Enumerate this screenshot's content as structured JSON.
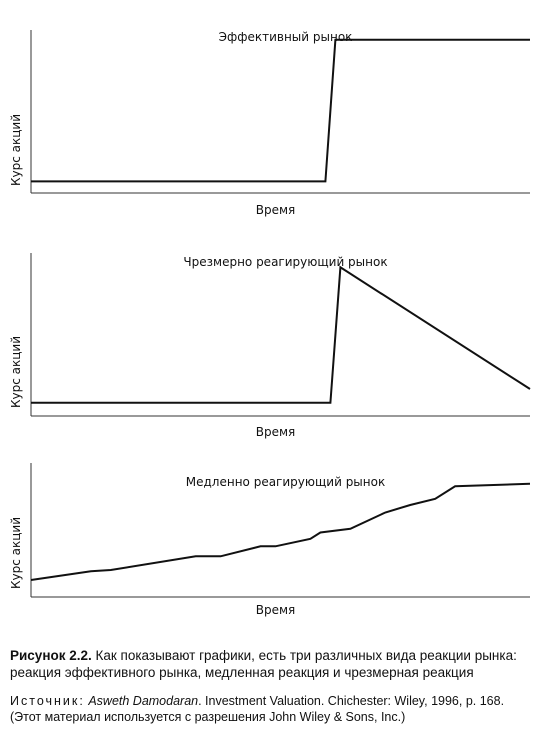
{
  "chart_data": [
    {
      "type": "line",
      "title": "Эффективный рынок",
      "xlabel": "Время",
      "ylabel": "Курс акций",
      "grid": false,
      "series": [
        {
          "x": [
            0,
            0.59,
            0.61,
            1.0
          ],
          "y": [
            0.03,
            0.03,
            0.95,
            0.95
          ]
        }
      ]
    },
    {
      "type": "line",
      "title": "Чрезмерно реагирующий рынок",
      "xlabel": "Время",
      "ylabel": "Курс акций",
      "grid": false,
      "series": [
        {
          "x": [
            0,
            0.6,
            0.62,
            1.0
          ],
          "y": [
            0.04,
            0.04,
            0.92,
            0.13
          ]
        }
      ]
    },
    {
      "type": "line",
      "title": "Медленно реагирующий рынок",
      "xlabel": "Время",
      "ylabel": "Курс акций",
      "grid": false,
      "series": [
        {
          "x": [
            0,
            0.12,
            0.16,
            0.33,
            0.38,
            0.46,
            0.49,
            0.56,
            0.58,
            0.64,
            0.71,
            0.76,
            0.81,
            0.85,
            1.0
          ],
          "y": [
            0.08,
            0.15,
            0.16,
            0.27,
            0.27,
            0.35,
            0.35,
            0.41,
            0.46,
            0.49,
            0.62,
            0.68,
            0.73,
            0.83,
            0.85
          ]
        }
      ]
    }
  ],
  "caption": {
    "label": "Рисунок 2.2.",
    "text": " Как показывают графики, есть три различных вида реакции рынка: реакция эффективного рынка, медленная реакция и чрезмерная реакция"
  },
  "source": {
    "prefix": "Источник:",
    "author": "Asweth Damodaran",
    "rest": ". Investment Valuation. Chichester: Wiley, 1996, p. 168. (Этот материал используется с разрешения John Wiley & Sons, Inc.)"
  }
}
